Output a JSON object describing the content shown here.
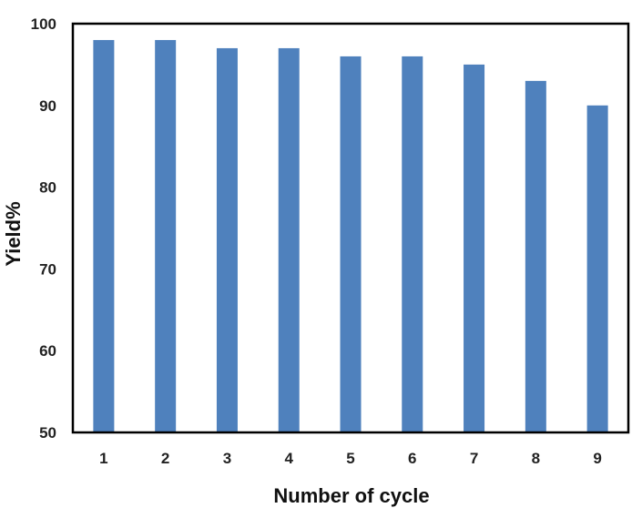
{
  "chart_data": {
    "type": "bar",
    "title": "",
    "xlabel": "Number of cycle",
    "ylabel": "Yield%",
    "categories": [
      "1",
      "2",
      "3",
      "4",
      "5",
      "6",
      "7",
      "8",
      "9"
    ],
    "values": [
      98,
      98,
      97,
      97,
      96,
      96,
      95,
      93,
      90
    ],
    "ylim": [
      50,
      100
    ],
    "yticks": [
      "50",
      "60",
      "70",
      "80",
      "90",
      "100"
    ],
    "grid": false,
    "legend": "none",
    "bar_color": "#4f81bd",
    "axis_color": "#000000"
  }
}
